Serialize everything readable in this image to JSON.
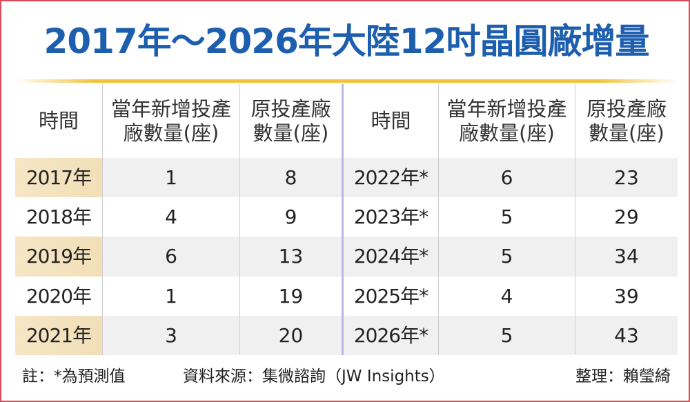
{
  "title": "2017年～2026年大陸12吋晶圓廠增量",
  "colors": {
    "title": "#1d5fae",
    "frame_border": "#d94a5a",
    "title_rule": "#f3c23c",
    "row_shade": "#f0f0f0",
    "year_highlight": "#f2dfb8",
    "center_divider": "#b8b8e0"
  },
  "chart_data": {
    "type": "table",
    "title": "2017年～2026年大陸12吋晶圓廠增量",
    "columns": [
      "時間",
      "當年新增投產廠數量(座)",
      "原投產廠數量(座)"
    ],
    "header_lines": {
      "time": [
        "時間"
      ],
      "new": [
        "當年新增投產",
        "廠數量(座)"
      ],
      "orig": [
        "原投產廠",
        "數量(座)"
      ]
    },
    "rows_left": [
      {
        "year": "2017年",
        "new": "1",
        "orig": "8"
      },
      {
        "year": "2018年",
        "new": "4",
        "orig": "9"
      },
      {
        "year": "2019年",
        "new": "6",
        "orig": "13"
      },
      {
        "year": "2020年",
        "new": "1",
        "orig": "19"
      },
      {
        "year": "2021年",
        "new": "3",
        "orig": "20"
      }
    ],
    "rows_right": [
      {
        "year": "2022年*",
        "new": "6",
        "orig": "23"
      },
      {
        "year": "2023年*",
        "new": "5",
        "orig": "29"
      },
      {
        "year": "2024年*",
        "new": "5",
        "orig": "34"
      },
      {
        "year": "2025年*",
        "new": "4",
        "orig": "39"
      },
      {
        "year": "2026年*",
        "new": "5",
        "orig": "43"
      }
    ]
  },
  "footer": {
    "note": "註：*為預測值",
    "source": "資料來源：集微諮詢（JW Insights）",
    "compiled_by": "整理：賴瑩綺"
  }
}
